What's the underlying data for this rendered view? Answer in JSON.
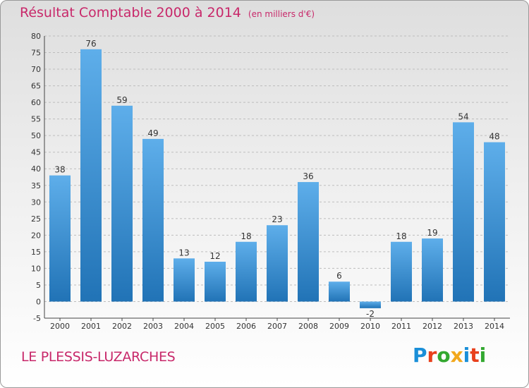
{
  "header": {
    "title": "Résultat Comptable 2000 à 2014",
    "subtitle": "(en milliers d'€)"
  },
  "footer": {
    "commune": "LE PLESSIS-LUZARCHES",
    "brand": "Proxiti",
    "brand_letter_colors": [
      "#1a8fd8",
      "#e8401c",
      "#33a830",
      "#f2a81d",
      "#1a8fd8",
      "#e8401c",
      "#33a830"
    ]
  },
  "colors": {
    "title": "#c8286a",
    "bar_light": "#5eaeea",
    "bar_dark": "#2173b6",
    "grid": "#bdbdbd"
  },
  "chart_data": {
    "type": "bar",
    "title": "Résultat Comptable 2000 à 2014",
    "subtitle": "(en milliers d'€)",
    "categories": [
      "2000",
      "2001",
      "2002",
      "2003",
      "2004",
      "2005",
      "2006",
      "2007",
      "2008",
      "2009",
      "2010",
      "2011",
      "2012",
      "2013",
      "2014"
    ],
    "values": [
      38,
      76,
      59,
      49,
      13,
      12,
      18,
      23,
      36,
      6,
      -2,
      18,
      19,
      54,
      48
    ],
    "ylim": [
      -5,
      80
    ],
    "yticks": [
      -5,
      0,
      5,
      10,
      15,
      20,
      25,
      30,
      35,
      40,
      45,
      50,
      55,
      60,
      65,
      70,
      75,
      80
    ],
    "grid": true,
    "xlabel": "",
    "ylabel": ""
  }
}
